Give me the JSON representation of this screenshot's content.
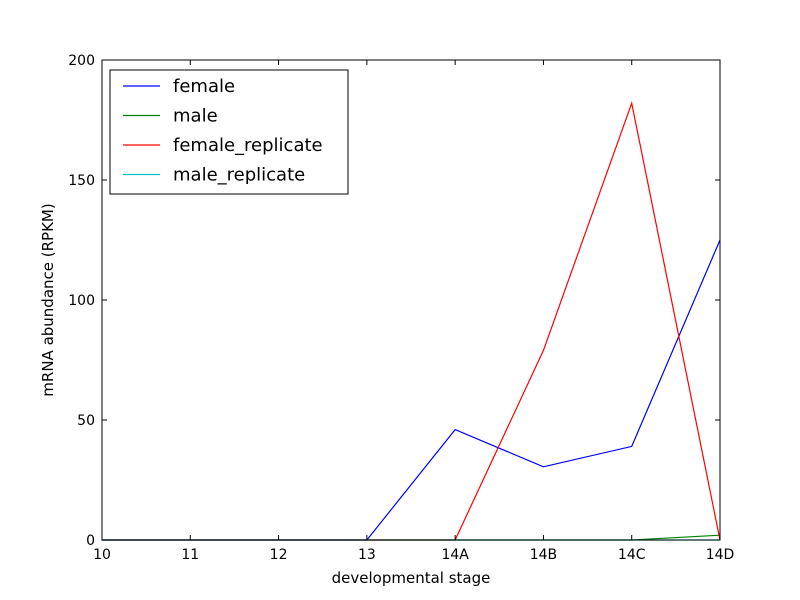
{
  "chart_data": {
    "type": "line",
    "title": "",
    "xlabel": "developmental stage",
    "ylabel": "mRNA abundance (RPKM)",
    "categories": [
      "10",
      "11",
      "12",
      "13",
      "14A",
      "14B",
      "14C",
      "14D"
    ],
    "ylim": [
      0,
      200
    ],
    "yticks": [
      0,
      50,
      100,
      150,
      200
    ],
    "grid": false,
    "legend_position": "top-left",
    "series": [
      {
        "name": "female",
        "color": "#0000ff",
        "values": [
          0,
          0,
          0,
          0,
          46,
          30.5,
          39,
          125
        ]
      },
      {
        "name": "male",
        "color": "#008000",
        "values": [
          0,
          0,
          0,
          0,
          0,
          0,
          0,
          2
        ]
      },
      {
        "name": "female_replicate",
        "color": "#ff0000",
        "values": [
          0,
          0,
          0,
          0,
          0,
          79,
          182,
          0
        ]
      },
      {
        "name": "male_replicate",
        "color": "#00bfbf",
        "values": [
          0,
          0,
          0,
          0,
          0,
          0,
          0,
          0
        ]
      }
    ]
  }
}
